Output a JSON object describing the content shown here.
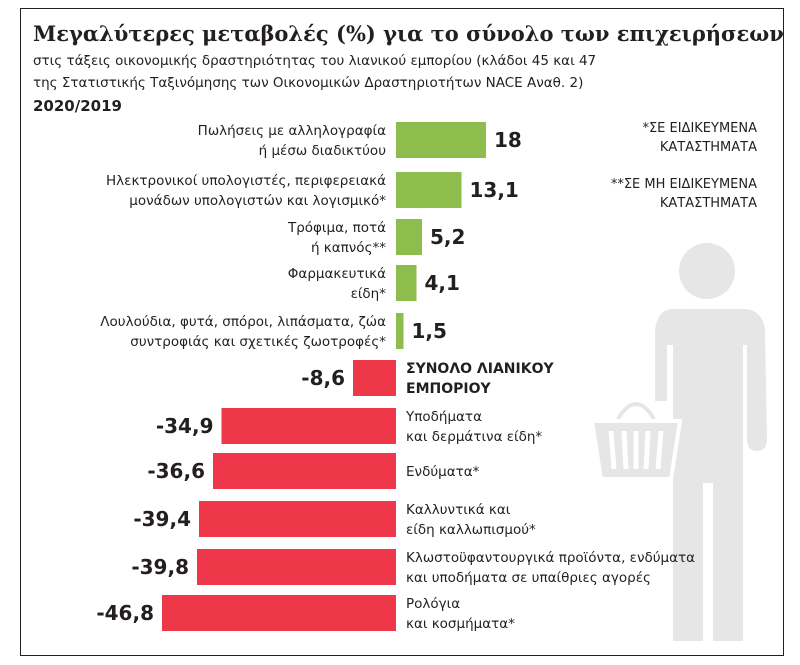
{
  "header": {
    "title": "Μεγαλύτερες μεταβολές (%) για το σύνολο των επιχειρήσεων",
    "subtitle_line1": "στις τάξεις οικονομικής δραστηριότητας του λιανικού εμπορίου (κλάδοι 45 και 47",
    "subtitle_line2": "της Στατιστικής Ταξινόμησης των Οικονομικών Δραστηριοτήτων NACE Αναθ. 2)",
    "period": "2020/2019"
  },
  "notes": {
    "note1_line1": "*ΣΕ ΕΙΔΙΚΕΥΜΕΝΑ",
    "note1_line2": "ΚΑΤΑΣΤΗΜΑΤΑ",
    "note2_line1": "**ΣΕ ΜΗ ΕΙΔΙΚΕΥΜΕΝΑ",
    "note2_line2": "ΚΑΤΑΣΤΗΜΑΤΑ"
  },
  "icon": "person-with-shopping-basket-icon",
  "colors": {
    "positive": "#8cbd4d",
    "negative": "#ee3748",
    "text": "#231f20",
    "icon": "#e6e6e6"
  },
  "chart_data": {
    "type": "bar",
    "orientation": "horizontal",
    "title": "Μεγαλύτερες μεταβολές (%) για το σύνολο των επιχειρήσεων",
    "bars": [
      {
        "label": [
          "Πωλήσεις με αλληλογραφία",
          "ή μέσω διαδικτύου"
        ],
        "value": 18,
        "value_label": "18",
        "bold": false
      },
      {
        "label": [
          "Ηλεκτρονικοί υπολογιστές, περιφερειακά",
          "μονάδων υπολογιστών και λογισμικό*"
        ],
        "value": 13.1,
        "value_label": "13,1",
        "bold": false
      },
      {
        "label": [
          "Τρόφιμα, ποτά",
          "ή καπνός**"
        ],
        "value": 5.2,
        "value_label": "5,2",
        "bold": false
      },
      {
        "label": [
          "Φαρμακευτικά",
          "είδη*"
        ],
        "value": 4.1,
        "value_label": "4,1",
        "bold": false
      },
      {
        "label": [
          "Λουλούδια, φυτά, σπόροι, λιπάσματα, ζώα",
          "συντροφιάς και σχετικές ζωοτροφές*"
        ],
        "value": 1.5,
        "value_label": "1,5",
        "bold": false
      },
      {
        "label": [
          "ΣΥΝΟΛΟ ΛΙΑΝΙΚΟΥ",
          "ΕΜΠΟΡΙΟΥ"
        ],
        "value": -8.6,
        "value_label": "-8,6",
        "bold": true
      },
      {
        "label": [
          "Υποδήματα",
          "και δερμάτινα είδη*"
        ],
        "value": -34.9,
        "value_label": "-34,9",
        "bold": false
      },
      {
        "label": [
          "Ενδύματα*"
        ],
        "value": -36.6,
        "value_label": "-36,6",
        "bold": false
      },
      {
        "label": [
          "Καλλυντικά και",
          "είδη καλλωπισμού*"
        ],
        "value": -39.4,
        "value_label": "-39,4",
        "bold": false
      },
      {
        "label": [
          "Κλωστοϋφαντουργικά προϊόντα, ενδύματα",
          "και υποδήματα σε υπαίθριες αγορές"
        ],
        "value": -39.8,
        "value_label": "-39,8",
        "bold": false
      },
      {
        "label": [
          "Ρολόγια",
          "και κοσμήματα*"
        ],
        "value": -46.8,
        "value_label": "-46,8",
        "bold": false
      }
    ]
  }
}
